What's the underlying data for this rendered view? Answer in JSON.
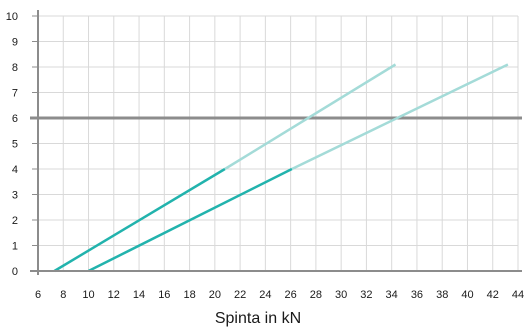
{
  "chart_data": {
    "type": "line",
    "title": "",
    "xlabel": "Spinta in kN",
    "ylabel": "",
    "xlim": [
      6,
      44
    ],
    "ylim": [
      0,
      10
    ],
    "x_ticks": [
      6,
      8,
      10,
      12,
      14,
      16,
      18,
      20,
      22,
      24,
      26,
      28,
      30,
      32,
      34,
      36,
      38,
      40,
      42,
      44
    ],
    "y_ticks": [
      0,
      1,
      2,
      3,
      4,
      5,
      6,
      7,
      8,
      9,
      10
    ],
    "grid": true,
    "reference_line": {
      "y": 6,
      "color": "#8c8c8c"
    },
    "series": [
      {
        "segments": [
          {
            "points": [
              [
                7.3,
                0
              ],
              [
                20.8,
                4
              ]
            ],
            "color": "#22b3ad"
          },
          {
            "points": [
              [
                20.8,
                4
              ],
              [
                34.3,
                8.1
              ]
            ],
            "color": "#a4dbd8"
          }
        ]
      },
      {
        "segments": [
          {
            "points": [
              [
                10.0,
                0
              ],
              [
                26.1,
                4
              ]
            ],
            "color": "#22b3ad"
          },
          {
            "points": [
              [
                26.1,
                4
              ],
              [
                43.2,
                8.1
              ]
            ],
            "color": "#a4dbd8"
          }
        ]
      }
    ]
  }
}
